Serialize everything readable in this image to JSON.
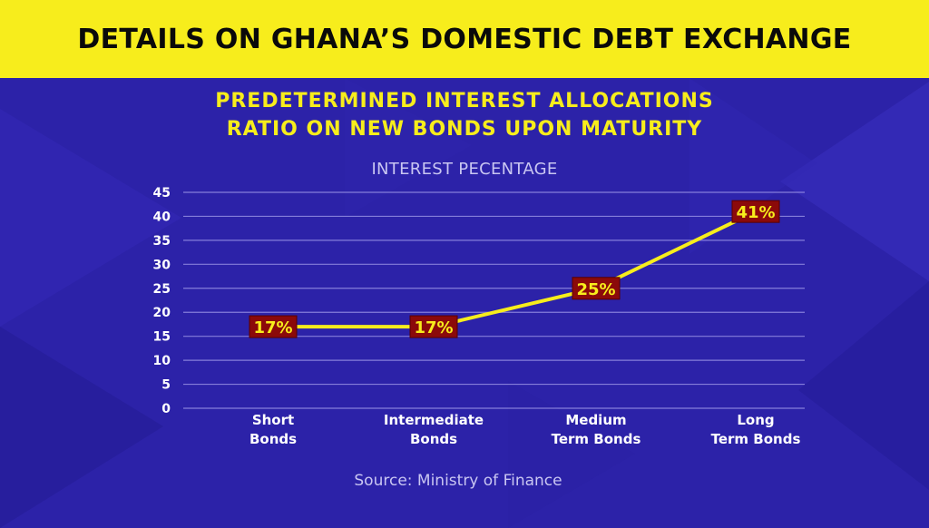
{
  "header": {
    "title": "DETAILS ON GHANA’S DOMESTIC DEBT EXCHANGE"
  },
  "colors": {
    "background": "#2c22a8",
    "banner": "#f7ed1c",
    "line": "#f7ed1c",
    "label_box": "#8b0a0a",
    "label_text": "#f7ed1c",
    "grid": "#8f88e0",
    "axis_text": "#ffffff"
  },
  "chart_data": {
    "type": "line",
    "title": "PREDETERMINED INTEREST ALLOCATIONS RATIO ON NEW BONDS UPON MATURITY",
    "title_lines": [
      "PREDETERMINED INTEREST ALLOCATIONS",
      "RATIO ON NEW BONDS UPON MATURITY"
    ],
    "ylabel": "INTEREST PECENTAGE",
    "xlabel": "",
    "categories": [
      [
        "Short",
        "Bonds"
      ],
      [
        "Intermediate",
        "Bonds"
      ],
      [
        "Medium",
        "Term Bonds"
      ],
      [
        "Long",
        "Term Bonds"
      ]
    ],
    "values": [
      17,
      17,
      25,
      41
    ],
    "data_labels": [
      "17%",
      "17%",
      "25%",
      "41%"
    ],
    "ylim": [
      0,
      45
    ],
    "yticks": [
      0,
      5,
      10,
      15,
      20,
      25,
      30,
      35,
      40,
      45
    ],
    "grid": true,
    "legend": "none"
  },
  "footer": {
    "source": "Source: Ministry of Finance"
  }
}
